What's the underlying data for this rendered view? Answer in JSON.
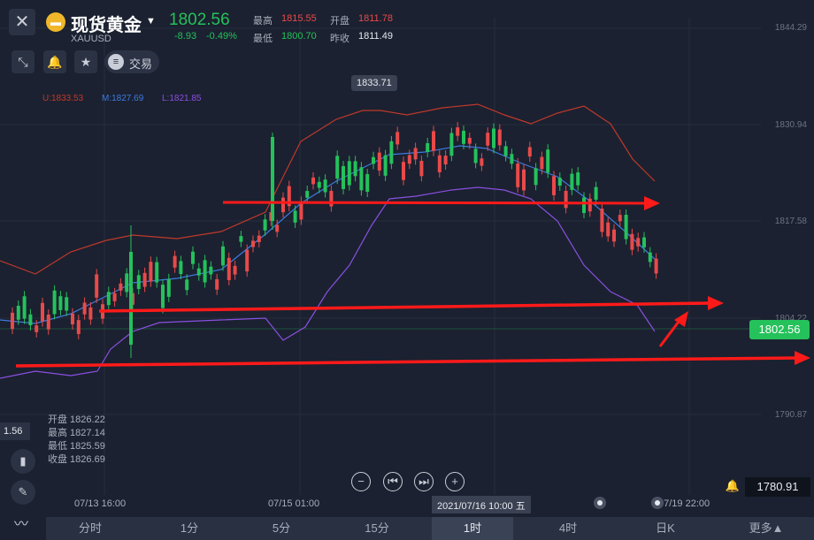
{
  "header": {
    "close_glyph": "✕",
    "symbol_icon_glyph": "▬",
    "title": "现货黄金",
    "caret": "▼",
    "code": "XAUUSD",
    "price": "1802.56",
    "change": "-8.93",
    "change_pct": "-0.49%",
    "high_label": "最高",
    "high_value": "1815.55",
    "open_label": "开盘",
    "open_value": "1811.78",
    "low_label": "最低",
    "low_value": "1800.70",
    "prev_label": "昨收",
    "prev_value": "1811.49"
  },
  "toolbar": {
    "expand_glyph": "⤡",
    "alert_glyph": "🔔",
    "favorite_glyph": "★",
    "trade_glyph": "≡",
    "trade_label": "交易"
  },
  "boll": {
    "upper": "U:1833.53",
    "middle": "M:1827.69",
    "lower": "L:1821.85"
  },
  "peak_label": "1833.71",
  "y_axis": [
    "1844.29",
    "1830.94",
    "1817.58",
    "1804.22",
    "1790.87"
  ],
  "current_price_tag": "1802.56",
  "left_price_tag": "1.56",
  "ohlc_box": {
    "open": "开盘 1826.22",
    "high": "最高 1827.14",
    "low": "最低 1825.59",
    "close": "收盘 1826.69"
  },
  "side_tools": {
    "candles_glyph": "▮",
    "pen_glyph": "✎",
    "indicator_glyph": "〰"
  },
  "zoom": {
    "out": "−",
    "first": "⏮",
    "last": "⏭",
    "in": "+"
  },
  "low_price_alert": "1780.91",
  "bell_glyph": "🔔",
  "x_axis": {
    "t1": "07/13 16:00",
    "t2": "07/15 01:00",
    "cursor": "2021/07/16 10:00 五",
    "t4": "07/19 22:00"
  },
  "tabs": [
    "分时",
    "1分",
    "5分",
    "15分",
    "1时",
    "4时",
    "日K",
    "更多▲"
  ],
  "active_tab": "1时",
  "colors": {
    "up": "#25c15b",
    "down": "#e84a4a",
    "upper_band": "#c0392b",
    "mid_band": "#3d7ae0",
    "lower_band": "#8a4fe0",
    "arrow": "#ff1a1a"
  }
}
